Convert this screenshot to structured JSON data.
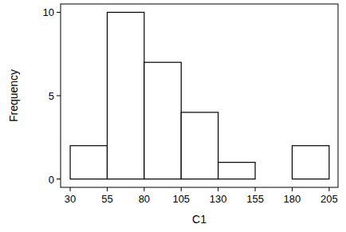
{
  "chart_data": {
    "type": "histogram",
    "x_label": "C1",
    "y_label": "Frequency",
    "bins": [
      30,
      55,
      80,
      105,
      130,
      155,
      180,
      205
    ],
    "counts": [
      2,
      10,
      7,
      4,
      1,
      0,
      2
    ],
    "color": "#ffffff",
    "xlim": [
      23.5,
      211
    ],
    "ylim": [
      -0.5,
      10.5
    ],
    "xticks": [
      30,
      55,
      80,
      105,
      130,
      155,
      180,
      205
    ],
    "yticks": [
      0,
      5,
      10
    ],
    "grid": false
  }
}
